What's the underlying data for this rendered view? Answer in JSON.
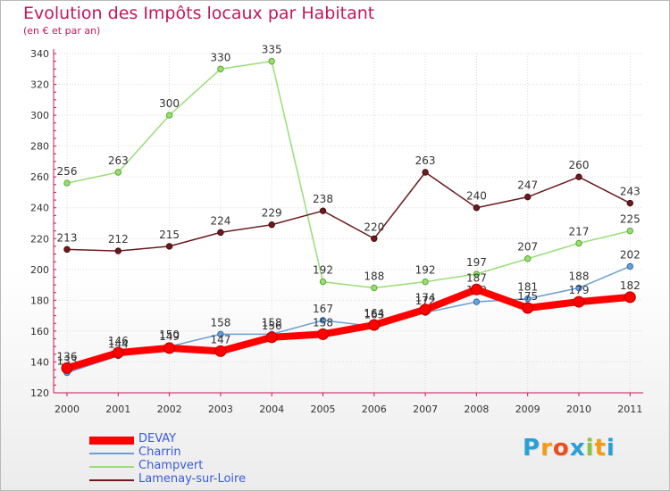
{
  "header": {
    "title": "Evolution des Impôts locaux par Habitant",
    "subtitle": "(en € et par an)"
  },
  "brand": {
    "letters": [
      "P",
      "r",
      "o",
      "x",
      "i",
      "t",
      "i"
    ],
    "colors": [
      "#2a9fd6",
      "#f39c12",
      "#e94e1b",
      "#2a9fd6",
      "#8bc34a",
      "#f39c12",
      "#2a9fd6"
    ]
  },
  "chart_data": {
    "type": "line",
    "title": "Evolution des Impôts locaux par Habitant",
    "subtitle": "(en € et par an)",
    "x": [
      "2000",
      "2001",
      "2002",
      "2003",
      "2004",
      "2005",
      "2006",
      "2007",
      "2008",
      "2009",
      "2010",
      "2011"
    ],
    "ylim": [
      120,
      340
    ],
    "yticks": [
      120,
      140,
      160,
      180,
      200,
      220,
      240,
      260,
      280,
      300,
      320,
      340
    ],
    "grid": true,
    "legend_position": "bottom-left",
    "series": [
      {
        "name": "DEVAY",
        "color": "#ff0000",
        "values": [
          136,
          146,
          149,
          147,
          156,
          158,
          164,
          174,
          187,
          175,
          179,
          182
        ]
      },
      {
        "name": "Charrin",
        "color": "#6b9fd4",
        "values": [
          133,
          144,
          150,
          158,
          158,
          167,
          163,
          172,
          179,
          181,
          188,
          202
        ]
      },
      {
        "name": "Champvert",
        "color": "#99dd77",
        "values": [
          256,
          263,
          300,
          330,
          335,
          192,
          188,
          192,
          197,
          207,
          217,
          225
        ]
      },
      {
        "name": "Lamenay-sur-Loire",
        "color": "#6b1a1f",
        "values": [
          213,
          212,
          215,
          224,
          229,
          238,
          220,
          263,
          240,
          247,
          260,
          243
        ]
      }
    ]
  }
}
